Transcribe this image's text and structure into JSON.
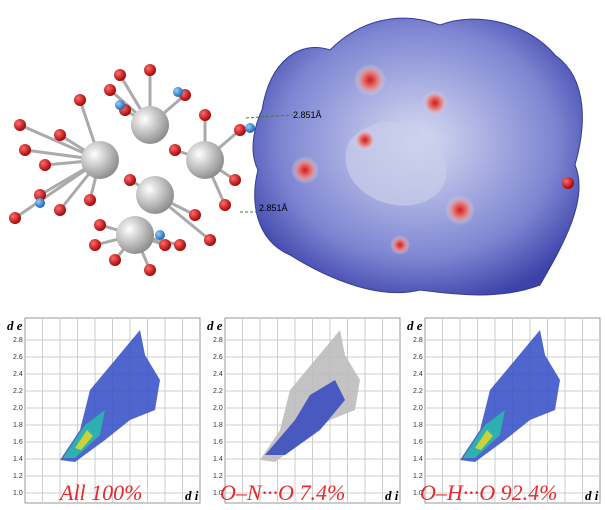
{
  "structure": {
    "contacts": [
      "2.851Å",
      "2.851Å"
    ]
  },
  "fingerprints": [
    {
      "caption": "All 100%",
      "y_axis": "d e",
      "x_axis": "d i",
      "yticks": [
        "2.8",
        "2.6",
        "2.4",
        "2.2",
        "2.0",
        "1.8",
        "1.6",
        "1.4",
        "1.2",
        "1.0"
      ]
    },
    {
      "caption": "O–N···O 7.4%",
      "y_axis": "d e",
      "x_axis": "d i",
      "yticks": [
        "2.8",
        "2.6",
        "2.4",
        "2.2",
        "2.0",
        "1.8",
        "1.6",
        "1.4",
        "1.2",
        "1.0"
      ]
    },
    {
      "caption": "O–H···O 92.4%",
      "y_axis": "d e",
      "x_axis": "d i",
      "yticks": [
        "2.8",
        "2.6",
        "2.4",
        "2.2",
        "2.0",
        "1.8",
        "1.6",
        "1.4",
        "1.2",
        "1.0"
      ]
    }
  ]
}
